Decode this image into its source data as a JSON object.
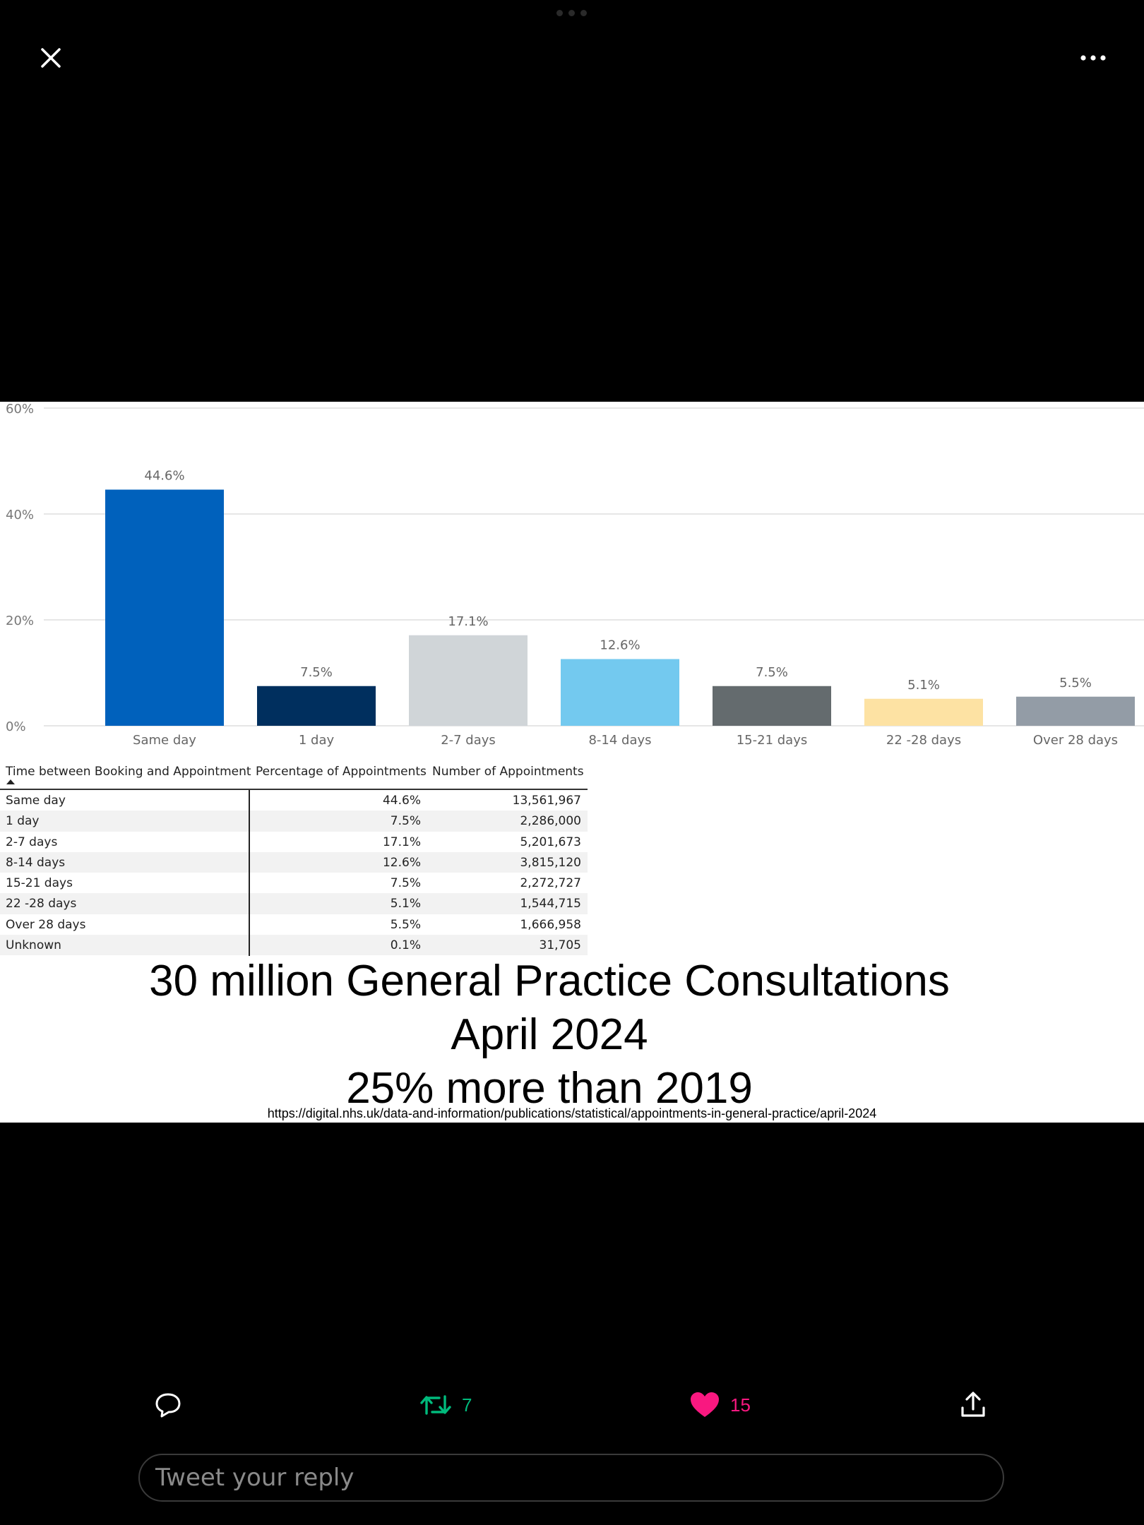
{
  "viewer": {
    "close_icon": "close-icon",
    "more_icon": "more-horizontal-icon"
  },
  "chart_data": {
    "type": "bar",
    "categories": [
      "Same day",
      "1 day",
      "2-7 days",
      "8-14 days",
      "15-21 days",
      "22 -28 days",
      "Over 28 days"
    ],
    "values": [
      44.6,
      7.5,
      17.1,
      12.6,
      7.5,
      5.1,
      5.5
    ],
    "data_labels": [
      "44.6%",
      "7.5%",
      "17.1%",
      "12.6%",
      "7.5%",
      "5.1%",
      "5.5%"
    ],
    "colors": [
      "#0061bc",
      "#002f5e",
      "#d0d5d8",
      "#73c9ef",
      "#646b6e",
      "#fde2a3",
      "#939ca6"
    ],
    "ylim": [
      0,
      60
    ],
    "y_ticks": [
      0,
      20,
      40,
      60
    ],
    "y_tick_labels": [
      "0%",
      "20%",
      "40%",
      "60%"
    ],
    "grid": true,
    "legend": "none"
  },
  "table": {
    "headers": [
      "Time between Booking and Appointment",
      "Percentage of Appointments",
      "Number of Appointments"
    ],
    "rows": [
      [
        "Same day",
        "44.6%",
        "13,561,967"
      ],
      [
        "1 day",
        "7.5%",
        "2,286,000"
      ],
      [
        "2-7 days",
        "17.1%",
        "5,201,673"
      ],
      [
        "8-14 days",
        "12.6%",
        "3,815,120"
      ],
      [
        "15-21 days",
        "7.5%",
        "2,272,727"
      ],
      [
        "22 -28 days",
        "5.1%",
        "1,544,715"
      ],
      [
        "Over 28 days",
        "5.5%",
        "1,666,958"
      ],
      [
        "Unknown",
        "0.1%",
        "31,705"
      ]
    ]
  },
  "caption": {
    "line1": "30 million General Practice Consultations",
    "line2": "April 2024",
    "line3": "25% more than 2019"
  },
  "source_url": "https://digital.nhs.uk/data-and-information/publications/statistical/appointments-in-general-practice/april-2024",
  "actions": {
    "reply_icon": "reply-icon",
    "retweet_icon": "retweet-icon",
    "retweet_count": "7",
    "retweet_color": "#00ba7c",
    "like_icon": "heart-icon",
    "like_count": "15",
    "like_color": "#f91880",
    "share_icon": "share-icon"
  },
  "reply": {
    "placeholder": "Tweet your reply"
  }
}
